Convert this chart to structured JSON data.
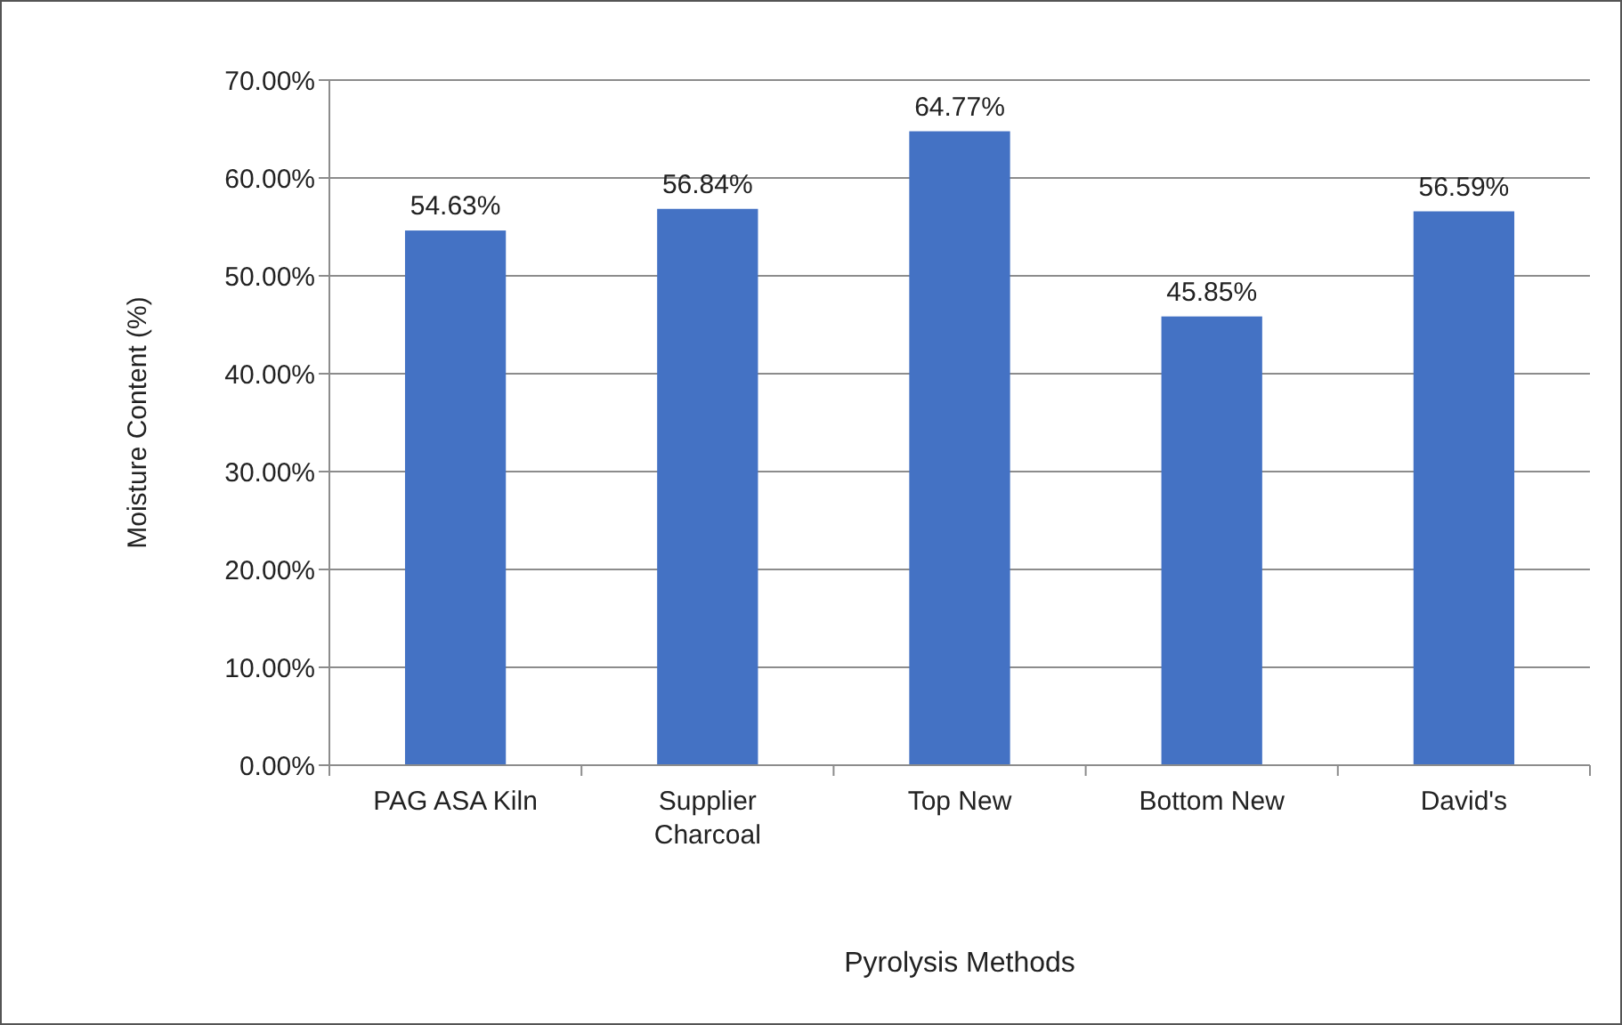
{
  "chart_data": {
    "type": "bar",
    "xlabel": "Pyrolysis Methods",
    "ylabel": "Moisture Content (%)",
    "categories": [
      "PAG ASA Kiln",
      "Supplier Charcoal",
      "Top New",
      "Bottom New",
      "David's"
    ],
    "values": [
      54.63,
      56.84,
      64.77,
      45.85,
      56.59
    ],
    "value_labels": [
      "54.63%",
      "56.84%",
      "64.77%",
      "45.85%",
      "56.59%"
    ],
    "color": "#4472c4",
    "ylim": [
      0,
      70
    ],
    "yticks": [
      {
        "value": 0,
        "label": "0.00%"
      },
      {
        "value": 10,
        "label": "10.00%"
      },
      {
        "value": 20,
        "label": "20.00%"
      },
      {
        "value": 30,
        "label": "30.00%"
      },
      {
        "value": 40,
        "label": "40.00%"
      },
      {
        "value": 50,
        "label": "50.00%"
      },
      {
        "value": 60,
        "label": "60.00%"
      },
      {
        "value": 70,
        "label": "70.00%"
      }
    ],
    "grid": "y"
  }
}
